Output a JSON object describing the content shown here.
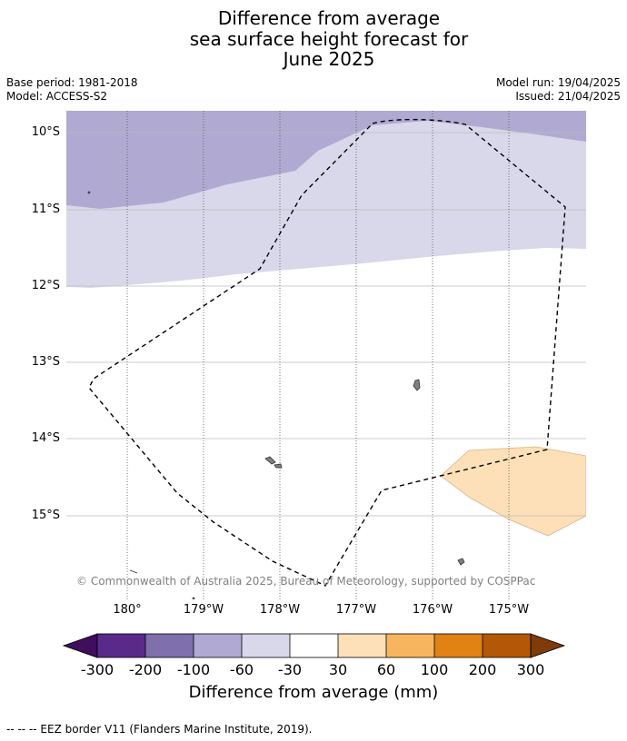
{
  "title_lines": [
    "Difference from average",
    "sea surface height forecast for",
    "June 2025"
  ],
  "meta_left": [
    "Base period: 1981-2018",
    "Model: ACCESS-S2"
  ],
  "meta_right": [
    "Model run: 19/04/2025",
    "Issued: 21/04/2025"
  ],
  "map": {
    "latitude_labels": [
      "10°S",
      "11°S",
      "12°S",
      "13°S",
      "14°S",
      "15°S"
    ],
    "longitude_labels": [
      "180°",
      "179°W",
      "178°W",
      "177°W",
      "176°W",
      "175°W"
    ],
    "copyright": "© Commonwealth of Australia 2025, Bureau of Meteorology, supported by COSPPac",
    "features": [
      "tokelau-islands",
      "swains-island",
      "eez-boundary"
    ],
    "anomaly_zones": [
      {
        "range_mm": "-100 to -60",
        "color": "#b0a9d2",
        "area": "north"
      },
      {
        "range_mm": "-60 to -30",
        "color": "#d8d8ea",
        "area": "north-central band"
      },
      {
        "range_mm": "-30 to 30",
        "color": "#ffffff",
        "area": "central and south"
      },
      {
        "range_mm": "30 to 60",
        "color": "#fde0b7",
        "area": "south-east"
      }
    ]
  },
  "colorbar": {
    "tick_labels": [
      "-300",
      "-200",
      "-100",
      "-60",
      "-30",
      "30",
      "60",
      "100",
      "200",
      "300"
    ],
    "colors": [
      "#3f0e5c",
      "#5a2a8a",
      "#7f6fac",
      "#b0a9d2",
      "#d8d8ea",
      "#ffffff",
      "#fde0b7",
      "#f8b55f",
      "#e08214",
      "#b35806",
      "#7f3b08"
    ],
    "label": "Difference from average (mm)"
  },
  "footnote": "--  --  -- EEZ border V11 (Flanders Marine Institute, 2019)."
}
